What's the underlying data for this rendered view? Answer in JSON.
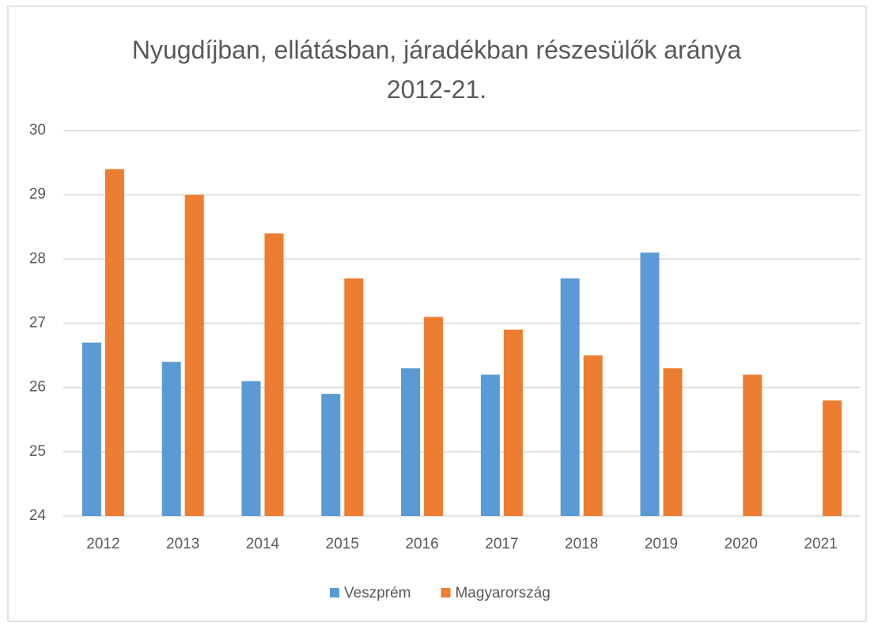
{
  "chart_data": {
    "type": "bar",
    "title": "Nyugdíjban, ellátásban, járadékban részesülők aránya 2012-21.",
    "categories": [
      "2012",
      "2013",
      "2014",
      "2015",
      "2016",
      "2017",
      "2018",
      "2019",
      "2020",
      "2021"
    ],
    "series": [
      {
        "name": "Veszprém",
        "color": "#5b9bd5",
        "values": [
          26.7,
          26.4,
          26.1,
          25.9,
          26.3,
          26.2,
          27.7,
          28.1,
          null,
          null
        ]
      },
      {
        "name": "Magyarország",
        "color": "#ed7d31",
        "values": [
          29.4,
          29.0,
          28.4,
          27.7,
          27.1,
          26.9,
          26.5,
          26.3,
          26.2,
          25.8
        ]
      }
    ],
    "ylim": [
      24,
      30
    ],
    "yticks": [
      24,
      25,
      26,
      27,
      28,
      29,
      30
    ],
    "grid": true,
    "legend": "bottom"
  }
}
